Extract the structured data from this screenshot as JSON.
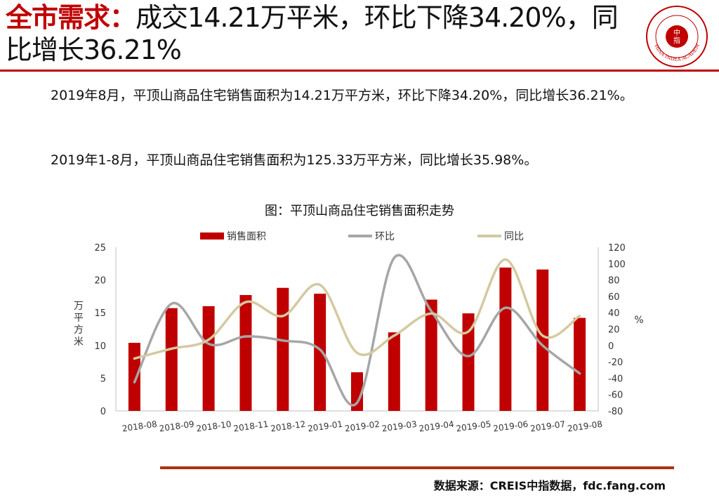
{
  "header": {
    "title_lead": "全市需求：",
    "title_rest": "成交14.21万平米，环比下降34.20%，同比增长36.21%",
    "logo": {
      "icon": "china-index-academy-seal-icon",
      "chars": [
        "中",
        "指"
      ],
      "text": "CHINA INDEX ACADEMY",
      "color": "#c00000"
    }
  },
  "body": {
    "paragraphs": [
      "2019年8月，平顶山商品住宅销售面积为14.21万平方米，环比下降34.20%，同比增长36.21%。",
      "2019年1-8月，平顶山商品住宅销售面积为125.33万平方米，同比增长35.98%。"
    ]
  },
  "chart_data": {
    "type": "bar",
    "title": "图：平顶山商品住宅销售面积走势",
    "categories": [
      "2018-08",
      "2018-09",
      "2018-10",
      "2018-11",
      "2018-12",
      "2019-01",
      "2019-02",
      "2019-03",
      "2019-04",
      "2019-05",
      "2019-06",
      "2019-07",
      "2019-08"
    ],
    "series": [
      {
        "name": "销售面积",
        "type": "bar",
        "axis": "left",
        "color": "#c00000",
        "values": [
          10.4,
          15.7,
          16.0,
          17.7,
          18.8,
          17.9,
          5.9,
          12.0,
          17.0,
          14.9,
          21.9,
          21.6,
          14.21
        ]
      },
      {
        "name": "环比",
        "type": "smooth-line",
        "axis": "right",
        "color": "#a6a6a6",
        "values": [
          -45,
          51,
          2,
          11,
          6,
          -5,
          -70,
          107,
          42,
          -13,
          46,
          0,
          -34.2
        ]
      },
      {
        "name": "同比",
        "type": "smooth-line",
        "axis": "right",
        "color": "#d4c9a1",
        "values": [
          -16,
          -4,
          7,
          53,
          36,
          74,
          -9,
          12,
          39,
          17,
          105,
          12,
          36.21
        ]
      }
    ],
    "ylabel": "万平方米",
    "y2label": "%",
    "ylim": [
      0,
      25
    ],
    "y2lim": [
      -80,
      120
    ],
    "yticks": [
      0,
      5,
      10,
      15,
      20,
      25
    ],
    "y2ticks": [
      -80,
      -60,
      -40,
      -20,
      0,
      20,
      40,
      60,
      80,
      100,
      120
    ],
    "legend_position": "top",
    "grid": false
  },
  "footer": {
    "source": "数据来源：CREIS中指数据，fdc.fang.com",
    "rule_color": "#b03010"
  }
}
